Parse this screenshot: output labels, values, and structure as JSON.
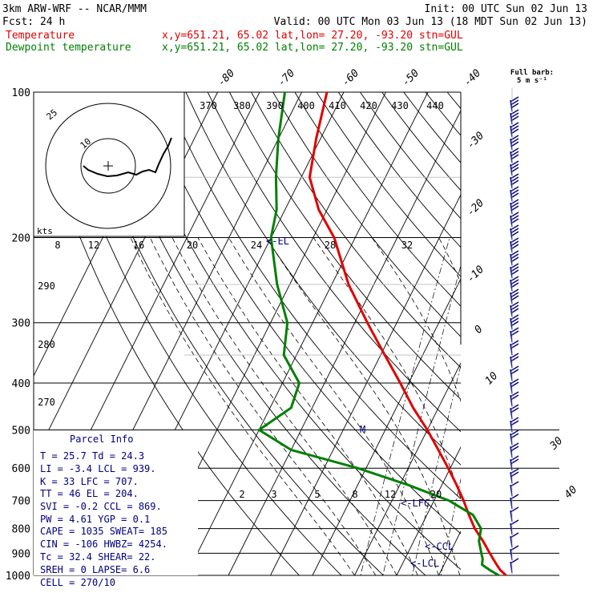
{
  "header": {
    "model": "3km ARW-WRF -- NCAR/MMM",
    "init": "Init: 00 UTC Sun 02 Jun 13",
    "fcst": "Fcst:    24 h",
    "valid": "Valid: 00 UTC Mon 03 Jun 13 (18 MDT Sun 02 Jun 13)",
    "temperature_label": "Temperature",
    "dewpoint_label": "Dewpoint temperature",
    "temperature_loc": "x,y=651.21, 65.02   lat,lon= 27.20, -93.20   stn=GUL",
    "dewpoint_loc": "x,y=651.21, 65.02   lat,lon= 27.20, -93.20   stn=GUL"
  },
  "barb_legend": {
    "line1": "Full barb:",
    "line2": "5 m s⁻¹"
  },
  "colors": {
    "temperature": "#e00000",
    "dewpoint": "#008000",
    "annotation": "#000080",
    "grid": "#000000"
  },
  "hodograph": {
    "ring_labels": [
      "25",
      "10"
    ],
    "kts_label": "kts"
  },
  "parcel_info": {
    "title": "Parcel Info",
    "rows": [
      "T  =   25.7  Td =  24.3",
      "LI =   -3.4  LCL =  939.",
      "K  =     33  LFC =  707.",
      "TT =     46  EL  =  204.",
      "SVI =  -0.2  CCL =  869.",
      "PW  =  4.61  YGP =   0.1",
      "CAPE =  1035  SWEAT=  185",
      "CIN  =  -106  HWBZ= 4254.",
      "Tc   =  32.4  SHEAR=  22.",
      "SREH =     0  LAPSE=  6.6",
      "CELL = 270/10"
    ]
  },
  "level_markers": {
    "el": "<-EL",
    "lfc": "<-LFC",
    "ccl": "<-CCL",
    "lcl": "<-LCL",
    "mark": "M"
  },
  "chart_data": {
    "type": "line",
    "chart_kind": "skew-T log-P sounding",
    "pressure_levels_hPa": [
      100,
      200,
      300,
      400,
      500,
      600,
      700,
      800,
      900,
      1000
    ],
    "isotherm_labels_top": [
      "-80",
      "-70",
      "-60",
      "-50",
      "-40"
    ],
    "isotherm_labels_right": [
      "-30",
      "-20",
      "-10",
      "0",
      "10",
      "30",
      "40"
    ],
    "theta_labels_top": [
      "370",
      "380",
      "390",
      "400",
      "410",
      "420",
      "430",
      "440"
    ],
    "theta_labels_left": [
      "290",
      "280",
      "270"
    ],
    "mixing_ratio_labels_upper": [
      "8",
      "12",
      "16",
      "20",
      "24",
      "28",
      "32"
    ],
    "mixing_ratio_labels_lower": [
      "2",
      "3",
      "5",
      "8",
      "12",
      "20"
    ],
    "series": [
      {
        "name": "Temperature",
        "pressure": [
          1000,
          975,
          950,
          925,
          900,
          850,
          800,
          750,
          700,
          650,
          600,
          550,
          500,
          450,
          400,
          350,
          300,
          250,
          200,
          175,
          150,
          125,
          100
        ],
        "temperature_C": [
          26,
          24,
          22.5,
          21,
          19.5,
          16.5,
          13,
          10,
          7,
          3.5,
          -0.5,
          -5,
          -10,
          -16,
          -22,
          -29,
          -37,
          -46,
          -55,
          -62,
          -68,
          -71,
          -74
        ]
      },
      {
        "name": "Dewpoint temperature",
        "pressure": [
          1000,
          975,
          950,
          925,
          900,
          850,
          800,
          750,
          700,
          650,
          600,
          550,
          500,
          450,
          400,
          350,
          300,
          250,
          200,
          175,
          150,
          125,
          100
        ],
        "dewpoint_C": [
          24.3,
          21.5,
          19,
          18.5,
          17.5,
          15.5,
          14.5,
          11,
          3.5,
          -8,
          -22,
          -40,
          -50,
          -45,
          -46,
          -53,
          -56,
          -63,
          -70,
          -72,
          -76,
          -80,
          -84
        ]
      }
    ]
  }
}
